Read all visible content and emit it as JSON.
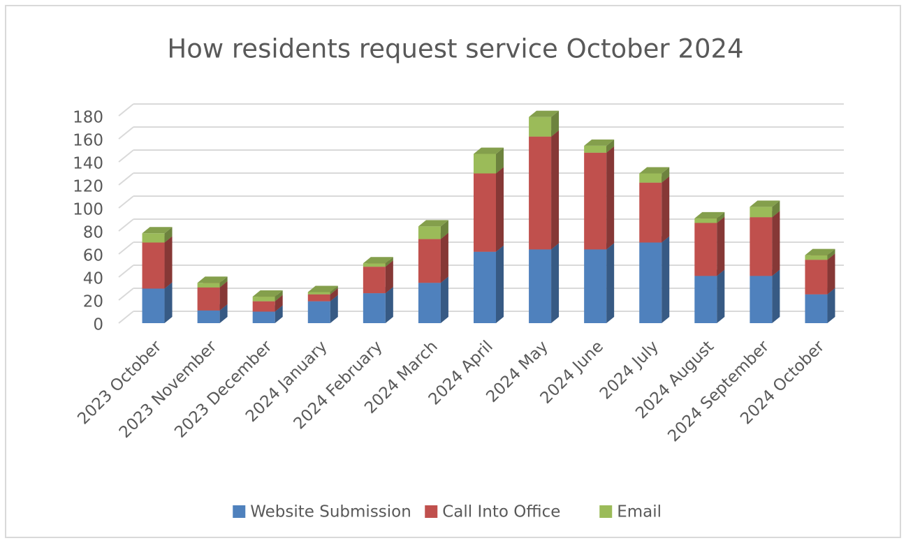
{
  "chart_data": {
    "type": "bar3d_stacked",
    "title": "How residents request service October 2024",
    "categories": [
      "2023 October",
      "2023 November",
      "2023 December",
      "2024 January",
      "2024 February",
      "2024 March",
      "2024 April",
      "2024 May",
      "2024 June",
      "2024 July",
      "2024 August",
      "2024 September",
      "2024 October"
    ],
    "series": [
      {
        "name": "Website Submission",
        "color": "#4f81bd",
        "values": [
          30,
          11,
          10,
          19,
          26,
          35,
          62,
          64,
          64,
          70,
          41,
          41,
          25
        ]
      },
      {
        "name": "Call Into Office",
        "color": "#c0504d",
        "values": [
          40,
          20,
          9,
          6,
          23,
          38,
          68,
          98,
          84,
          52,
          46,
          51,
          30
        ]
      },
      {
        "name": "Email",
        "color": "#9bbb59",
        "values": [
          8,
          4,
          4,
          2,
          3,
          11,
          17,
          17,
          6,
          8,
          4,
          9,
          4
        ]
      }
    ],
    "ylim": [
      0,
      180
    ],
    "yticks": [
      0,
      20,
      40,
      60,
      80,
      100,
      120,
      140,
      160,
      180
    ],
    "grid": true,
    "legend": "bottom"
  }
}
